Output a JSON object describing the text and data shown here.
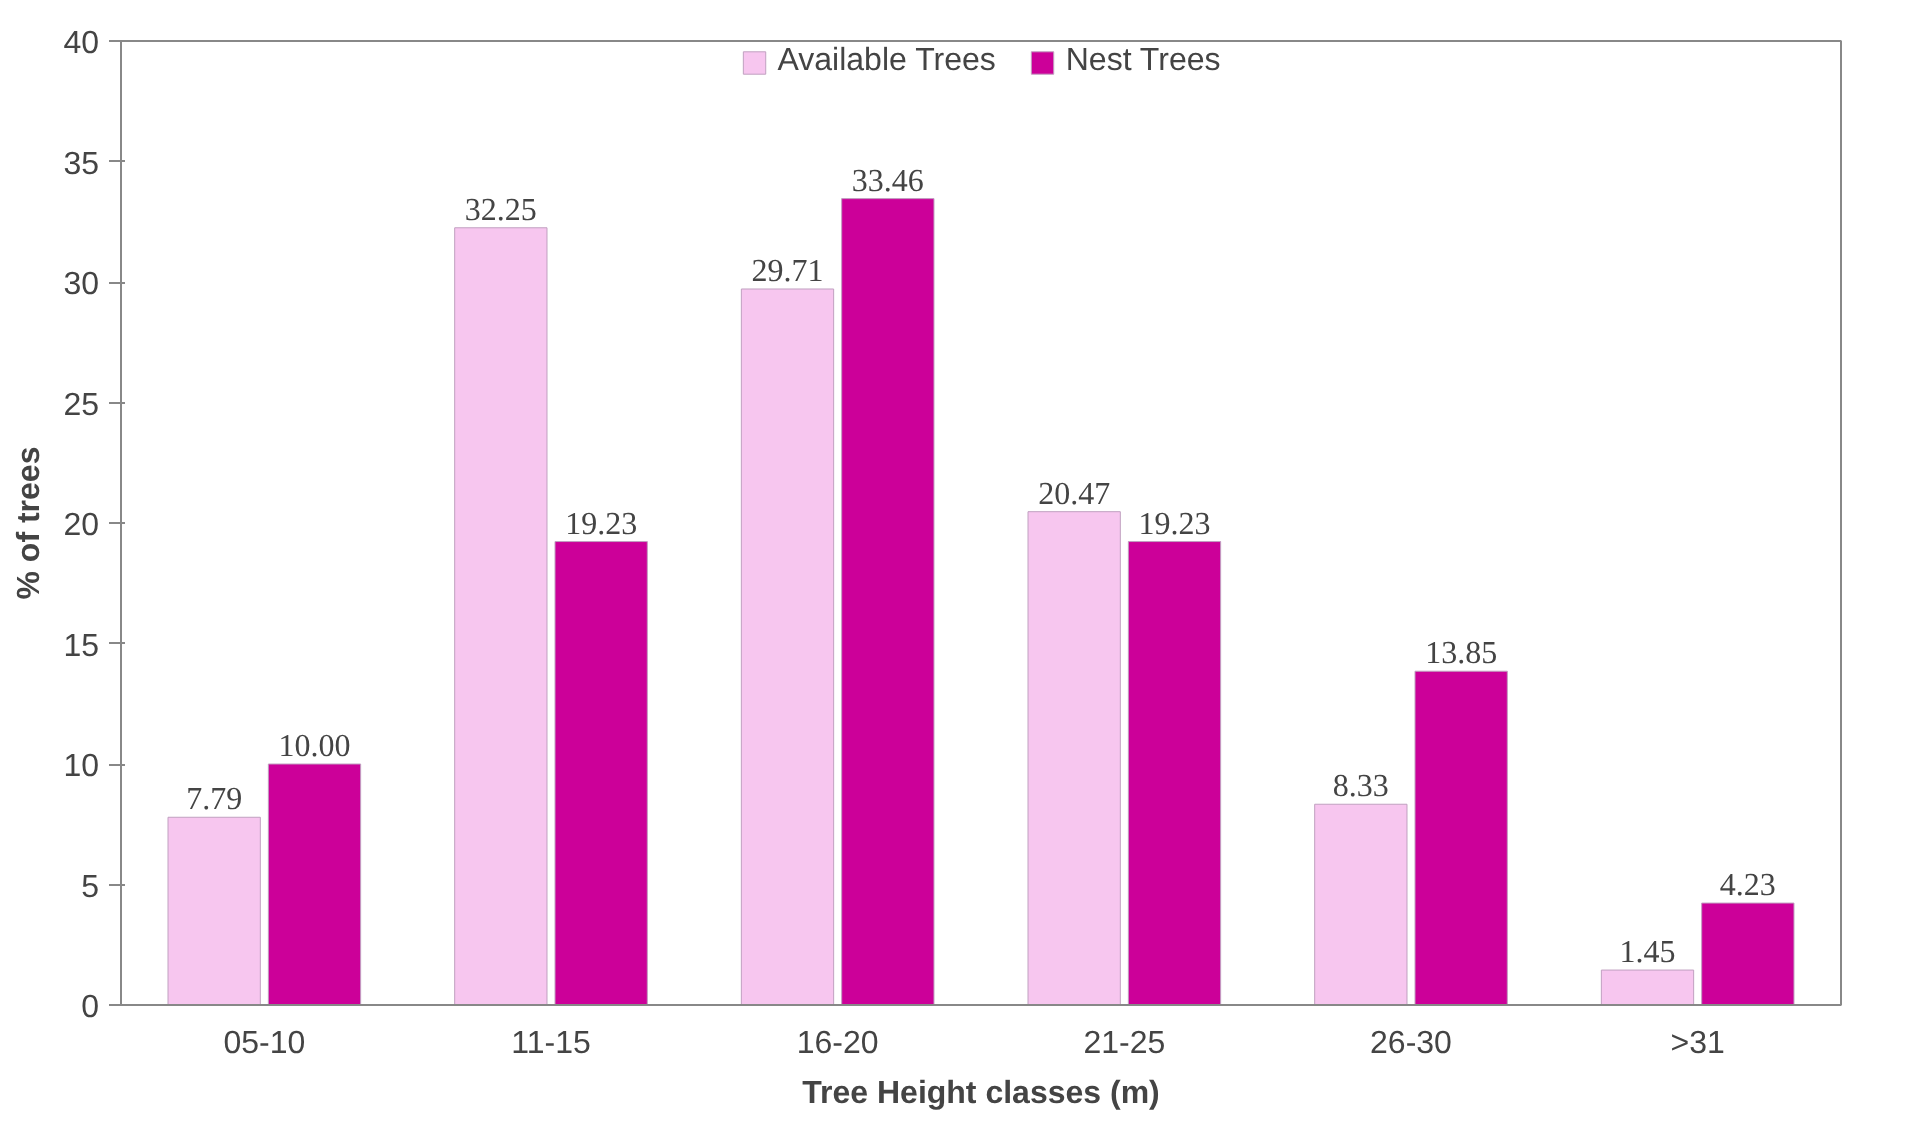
{
  "chart_data": {
    "type": "bar",
    "xlabel": "Tree Height classes (m)",
    "ylabel": "% of trees",
    "categories": [
      "05-10",
      "11-15",
      "16-20",
      "21-25",
      "26-30",
      ">31"
    ],
    "series": [
      {
        "name": "Available Trees",
        "color": "#f7c6ef",
        "values": [
          7.79,
          32.25,
          29.71,
          20.47,
          8.33,
          1.45
        ],
        "value_labels": [
          "7.79",
          "32.25",
          "29.71",
          "20.47",
          "8.33",
          "1.45"
        ]
      },
      {
        "name": "Nest Trees",
        "color": "#cc0099",
        "values": [
          10.0,
          19.23,
          33.46,
          19.23,
          13.85,
          4.23
        ],
        "value_labels": [
          "10.00",
          "19.23",
          "33.46",
          "19.23",
          "13.85",
          "4.23"
        ]
      }
    ],
    "ylim": [
      0,
      40
    ],
    "yticks": [
      0,
      5,
      10,
      15,
      20,
      25,
      30,
      35,
      40
    ],
    "grid": false,
    "legend": "top"
  }
}
